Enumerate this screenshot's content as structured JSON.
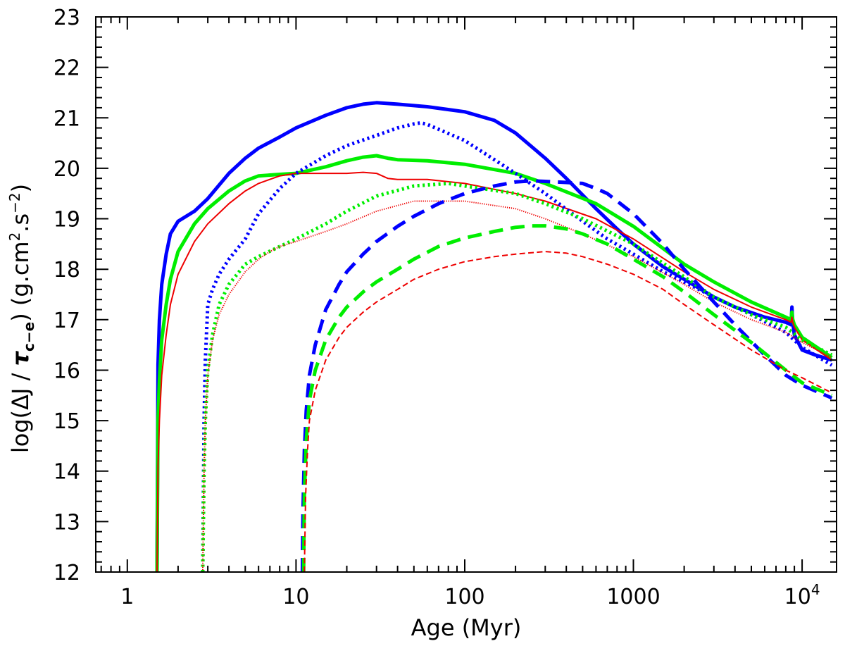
{
  "chart_data": {
    "type": "line",
    "xlabel": "Age (Myr)",
    "ylabel": "log(ΔJ / τc−e) (g.cm².s⁻²)",
    "ylabel_parts": {
      "pre": "log(ΔJ / ",
      "tau": "τ",
      "tau_sub": "c−e",
      "post": ") (g.cm",
      "sup1": "2",
      "mid": ".s",
      "sup2": "−2",
      "end": ")"
    },
    "xscale": "log",
    "xlim": [
      0.65,
      16000
    ],
    "ylim": [
      12,
      23
    ],
    "grid": false,
    "legend": "none",
    "x_tick_labels": [
      {
        "value": 1,
        "label": "1"
      },
      {
        "value": 10,
        "label": "10"
      },
      {
        "value": 100,
        "label": "100"
      },
      {
        "value": 1000,
        "label": "1000"
      },
      {
        "value": 10000,
        "label": "10",
        "sup": "4"
      }
    ],
    "y_tick_labels": [
      "12",
      "13",
      "14",
      "15",
      "16",
      "17",
      "18",
      "19",
      "20",
      "21",
      "22",
      "23"
    ],
    "series": [
      {
        "color": "#0000ff",
        "style": "solid",
        "weight": "thick",
        "x": [
          1.5,
          1.52,
          1.55,
          1.6,
          1.7,
          1.8,
          2.0,
          2.5,
          3,
          4,
          5,
          6,
          8,
          10,
          15,
          20,
          25,
          30,
          40,
          60,
          100,
          150,
          200,
          300,
          400,
          600,
          800,
          1000,
          1500,
          2000,
          3000,
          4000,
          6000,
          8000,
          8600,
          8700,
          8800,
          9000,
          10000,
          12000,
          15000
        ],
        "y": [
          12,
          16.1,
          17.0,
          17.7,
          18.3,
          18.7,
          18.95,
          19.15,
          19.4,
          19.9,
          20.2,
          20.4,
          20.62,
          20.8,
          21.05,
          21.2,
          21.27,
          21.3,
          21.27,
          21.22,
          21.12,
          20.95,
          20.7,
          20.2,
          19.8,
          19.2,
          18.8,
          18.5,
          18.05,
          17.8,
          17.45,
          17.25,
          17.05,
          16.95,
          16.9,
          17.25,
          16.95,
          16.7,
          16.4,
          16.3,
          16.2
        ]
      },
      {
        "color": "#00ee00",
        "style": "solid",
        "weight": "thick",
        "x": [
          1.5,
          1.52,
          1.55,
          1.6,
          1.7,
          1.8,
          2,
          2.5,
          3,
          4,
          5,
          6,
          8,
          10,
          15,
          20,
          25,
          30,
          35,
          40,
          60,
          100,
          200,
          300,
          600,
          1000,
          2000,
          3000,
          5000,
          8000,
          8600,
          8700,
          8800,
          9000,
          10000,
          15000
        ],
        "y": [
          12,
          15.0,
          15.8,
          16.6,
          17.3,
          17.8,
          18.35,
          18.9,
          19.2,
          19.55,
          19.75,
          19.85,
          19.88,
          19.9,
          20.03,
          20.15,
          20.22,
          20.25,
          20.2,
          20.17,
          20.15,
          20.08,
          19.9,
          19.7,
          19.3,
          18.85,
          18.1,
          17.75,
          17.35,
          17.05,
          17.0,
          17.15,
          17.0,
          16.9,
          16.65,
          16.25
        ]
      },
      {
        "color": "#ee0000",
        "style": "solid",
        "weight": "thin",
        "x": [
          1.5,
          1.52,
          1.55,
          1.6,
          1.7,
          1.8,
          2,
          2.5,
          3,
          4,
          5,
          6,
          8,
          10,
          15,
          20,
          25,
          30,
          35,
          40,
          60,
          100,
          200,
          300,
          600,
          1000,
          2000,
          3000,
          5000,
          8000,
          8600,
          8700,
          8800,
          9000,
          10000,
          15000
        ],
        "y": [
          12,
          14.1,
          15.0,
          15.9,
          16.7,
          17.3,
          17.9,
          18.55,
          18.9,
          19.3,
          19.55,
          19.7,
          19.85,
          19.9,
          19.9,
          19.9,
          19.92,
          19.9,
          19.8,
          19.78,
          19.78,
          19.7,
          19.5,
          19.35,
          19.0,
          18.6,
          17.95,
          17.6,
          17.25,
          17.0,
          16.95,
          17.05,
          16.95,
          16.85,
          16.6,
          16.2
        ]
      },
      {
        "color": "#0000ff",
        "style": "dotted",
        "weight": "thick",
        "x": [
          2.8,
          2.85,
          2.9,
          3.0,
          3.2,
          3.5,
          4,
          5,
          6,
          8,
          10,
          15,
          20,
          30,
          40,
          50,
          55,
          60,
          100,
          200,
          300,
          500,
          700,
          1000,
          1500,
          2000,
          3000,
          5000,
          8000,
          10000,
          15000
        ],
        "y": [
          12,
          15.0,
          16.2,
          17.3,
          17.6,
          17.9,
          18.2,
          18.6,
          19.1,
          19.6,
          19.9,
          20.25,
          20.45,
          20.65,
          20.8,
          20.88,
          20.9,
          20.87,
          20.55,
          19.9,
          19.5,
          18.95,
          18.6,
          18.3,
          17.95,
          17.75,
          17.45,
          17.1,
          16.75,
          16.45,
          16.1
        ]
      },
      {
        "color": "#00ee00",
        "style": "dotted",
        "weight": "thick",
        "x": [
          2.8,
          2.85,
          2.9,
          3.0,
          3.2,
          3.5,
          4,
          5,
          6,
          8,
          10,
          15,
          20,
          30,
          50,
          80,
          100,
          200,
          300,
          500,
          1000,
          2000,
          3000,
          5000,
          8000,
          10000,
          15000
        ],
        "y": [
          12,
          14.0,
          15.0,
          16.0,
          16.7,
          17.3,
          17.7,
          18.1,
          18.25,
          18.45,
          18.6,
          18.9,
          19.15,
          19.45,
          19.65,
          19.7,
          19.65,
          19.5,
          19.3,
          19.0,
          18.5,
          17.85,
          17.45,
          17.1,
          16.85,
          16.6,
          16.3
        ]
      },
      {
        "color": "#ee0000",
        "style": "dotted",
        "weight": "thin",
        "x": [
          2.8,
          2.85,
          2.9,
          3.0,
          3.2,
          3.5,
          4,
          5,
          6,
          7,
          8,
          10,
          15,
          20,
          30,
          50,
          100,
          200,
          300,
          500,
          1000,
          2000,
          3000,
          5000,
          8000,
          10000,
          15000
        ],
        "y": [
          12,
          14.0,
          15.0,
          15.9,
          16.6,
          17.1,
          17.5,
          17.95,
          18.2,
          18.35,
          18.45,
          18.55,
          18.75,
          18.9,
          19.15,
          19.35,
          19.35,
          19.2,
          19.0,
          18.7,
          18.25,
          17.7,
          17.35,
          17.0,
          16.75,
          16.55,
          16.25
        ]
      },
      {
        "color": "#0000ff",
        "style": "dashed",
        "weight": "thick",
        "x": [
          10.9,
          11,
          11.2,
          11.5,
          12,
          13,
          15,
          18,
          20,
          25,
          30,
          40,
          50,
          70,
          100,
          150,
          200,
          250,
          300,
          400,
          500,
          600,
          700,
          1000,
          1500,
          2000,
          3000,
          4000,
          6000,
          8000,
          10000,
          15000
        ],
        "y": [
          12,
          13.2,
          14.4,
          15.2,
          15.9,
          16.5,
          17.2,
          17.7,
          17.95,
          18.3,
          18.55,
          18.85,
          19.05,
          19.3,
          19.5,
          19.65,
          19.73,
          19.75,
          19.74,
          19.72,
          19.7,
          19.6,
          19.5,
          19.1,
          18.5,
          18.0,
          17.35,
          16.9,
          16.3,
          15.9,
          15.7,
          15.45
        ]
      },
      {
        "color": "#00ee00",
        "style": "dashed",
        "weight": "thick",
        "x": [
          11.1,
          11.2,
          11.5,
          12,
          13,
          15,
          18,
          20,
          25,
          30,
          40,
          50,
          70,
          100,
          150,
          200,
          250,
          300,
          400,
          500,
          700,
          1000,
          1500,
          2000,
          3000,
          5000,
          8000,
          10000,
          15000
        ],
        "y": [
          12,
          13.5,
          14.6,
          15.4,
          16.0,
          16.6,
          17.05,
          17.25,
          17.55,
          17.75,
          18.0,
          18.2,
          18.45,
          18.62,
          18.75,
          18.83,
          18.86,
          18.86,
          18.8,
          18.7,
          18.5,
          18.2,
          17.85,
          17.55,
          17.1,
          16.55,
          16.0,
          15.75,
          15.5
        ]
      },
      {
        "color": "#ee0000",
        "style": "dashed",
        "weight": "thin",
        "x": [
          11.2,
          11.4,
          11.7,
          12,
          13,
          15,
          18,
          20,
          25,
          30,
          40,
          50,
          70,
          100,
          150,
          200,
          300,
          400,
          500,
          700,
          1000,
          1500,
          2000,
          3000,
          5000,
          8000,
          10000,
          15000
        ],
        "y": [
          12,
          13.5,
          14.4,
          15.0,
          15.6,
          16.2,
          16.65,
          16.85,
          17.15,
          17.35,
          17.6,
          17.8,
          18.0,
          18.15,
          18.25,
          18.3,
          18.35,
          18.32,
          18.25,
          18.1,
          17.9,
          17.6,
          17.3,
          16.9,
          16.4,
          16.0,
          15.85,
          15.55
        ]
      }
    ]
  }
}
